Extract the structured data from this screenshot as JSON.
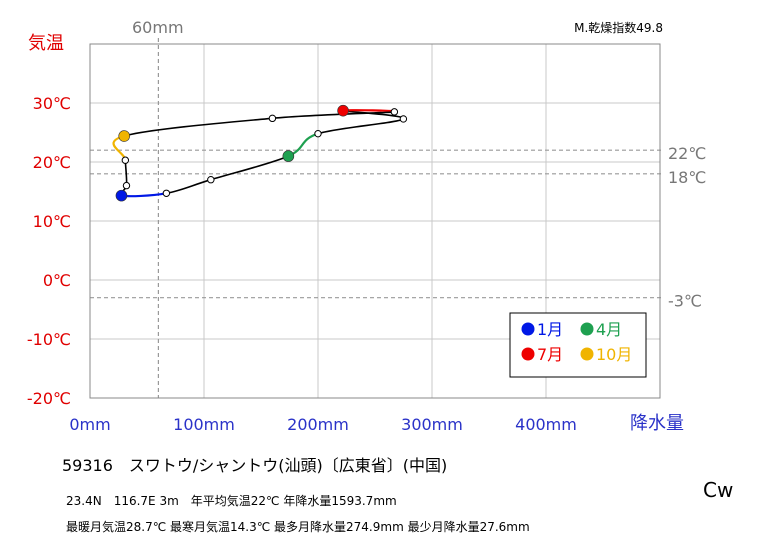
{
  "chart_data": {
    "type": "line",
    "ylabel": "気温",
    "xlabel": "降水量",
    "top_right_label": "M.乾燥指数49.8",
    "x_marker_label": "60mm",
    "x_marker_value": 60,
    "xlim": [
      0,
      500
    ],
    "ylim": [
      -20,
      40
    ],
    "x_ticks": [
      0,
      100,
      200,
      300,
      400
    ],
    "x_tick_labels": [
      "0mm",
      "100mm",
      "200mm",
      "300mm",
      "400mm"
    ],
    "y_ticks": [
      -20,
      -10,
      0,
      10,
      20,
      30
    ],
    "y_tick_labels": [
      "-20℃",
      "-10℃",
      "0℃",
      "10℃",
      "20℃",
      "30℃"
    ],
    "reference_lines": [
      {
        "value": 22,
        "label": "22℃"
      },
      {
        "value": 18,
        "label": "18℃"
      },
      {
        "value": -3,
        "label": "-3℃"
      }
    ],
    "grid": true,
    "months": [
      {
        "month": 1,
        "precip": 27.6,
        "temp": 14.3
      },
      {
        "month": 2,
        "precip": 67,
        "temp": 14.7
      },
      {
        "month": 3,
        "precip": 106,
        "temp": 17.0
      },
      {
        "month": 4,
        "precip": 174,
        "temp": 21.0
      },
      {
        "month": 5,
        "precip": 200,
        "temp": 24.8
      },
      {
        "month": 6,
        "precip": 274.9,
        "temp": 27.3
      },
      {
        "month": 7,
        "precip": 222,
        "temp": 28.7
      },
      {
        "month": 8,
        "precip": 267,
        "temp": 28.5
      },
      {
        "month": 9,
        "precip": 160,
        "temp": 27.4
      },
      {
        "month": 10,
        "precip": 30,
        "temp": 24.4
      },
      {
        "month": 11,
        "precip": 31,
        "temp": 20.3
      },
      {
        "month": 12,
        "precip": 32,
        "temp": 16.0
      }
    ],
    "highlight": [
      {
        "month": 1,
        "label": "1月",
        "color": "#0018e6"
      },
      {
        "month": 4,
        "label": "4月",
        "color": "#1ea050"
      },
      {
        "month": 7,
        "label": "7月",
        "color": "#ee0000"
      },
      {
        "month": 10,
        "label": "10月",
        "color": "#f0b400"
      }
    ]
  },
  "info": {
    "station": "59316　スワトウ/シャントウ(汕頭)〔広東省〕(中国)",
    "line1": "23.4N　116.7E 3m　年平均気温22℃ 年降水量1593.7mm",
    "line2": "最暖月気温28.7℃ 最寒月気温14.3℃ 最多月降水量274.9mm 最少月降水量27.6mm",
    "climate_class": "Cw"
  }
}
